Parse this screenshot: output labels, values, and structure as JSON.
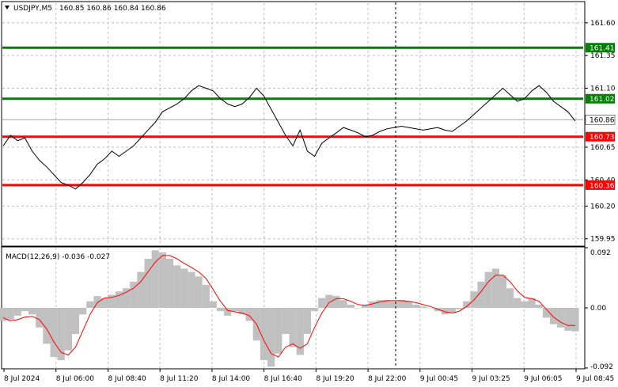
{
  "header": {
    "symbol_label": "USDJPY,M5",
    "ohlc": "160.85 160.86 160.84 160.86"
  },
  "macd_header": {
    "label": "MACD(12,26,9) -0.036 -0.027"
  },
  "colors": {
    "price_line": "#000000",
    "support_level": "#ff0000",
    "resistance_level": "#008000",
    "grid": "#c0c0c0",
    "macd_histogram": "#c0c0c0",
    "signal_line": "#ff0000",
    "current_price_line": "#a0a0a0",
    "cursor_line": "#000000"
  },
  "chart_data": [
    {
      "type": "line",
      "title": "USDJPY,M5",
      "ylim": [
        159.9,
        161.75
      ],
      "y_ticks": [
        "161.60",
        "161.35",
        "161.10",
        "160.86",
        "160.65",
        "160.40",
        "160.20",
        "159.95"
      ],
      "x_ticks": [
        "8 Jul 2024",
        "8 Jul 06:00",
        "8 Jul 08:40",
        "8 Jul 11:20",
        "8 Jul 14:00",
        "8 Jul 16:40",
        "8 Jul 19:20",
        "8 Jul 22:00",
        "9 Jul 00:45",
        "9 Jul 03:25",
        "9 Jul 06:05",
        "9 Jul 08:45"
      ],
      "levels": [
        {
          "value": 161.41,
          "label": "161.41",
          "color": "#008000"
        },
        {
          "value": 161.02,
          "label": "161.02",
          "color": "#008000"
        },
        {
          "value": 160.73,
          "label": "160.73",
          "color": "#ff0000"
        },
        {
          "value": 160.36,
          "label": "160.36",
          "color": "#ff0000"
        }
      ],
      "current_price": {
        "value": 160.86,
        "label": "160.86"
      },
      "series": [
        {
          "values": [
            160.66,
            160.74,
            160.7,
            160.72,
            160.62,
            160.55,
            160.5,
            160.44,
            160.38,
            160.36,
            160.33,
            160.38,
            160.44,
            160.52,
            160.56,
            160.62,
            160.58,
            160.62,
            160.66,
            160.72,
            160.78,
            160.84,
            160.92,
            160.95,
            160.98,
            161.02,
            161.08,
            161.12,
            161.1,
            161.08,
            161.02,
            160.98,
            160.96,
            160.98,
            161.03,
            161.1,
            161.04,
            160.94,
            160.84,
            160.74,
            160.66,
            160.78,
            160.62,
            160.58,
            160.68,
            160.72,
            160.76,
            160.8,
            160.78,
            160.76,
            160.73,
            160.74,
            160.77,
            160.79,
            160.8,
            160.81,
            160.8,
            160.79,
            160.78,
            160.79,
            160.8,
            160.78,
            160.77,
            160.81,
            160.85,
            160.9,
            160.95,
            161.0,
            161.05,
            161.1,
            161.05,
            161.0,
            161.02,
            161.08,
            161.12,
            161.07,
            161.0,
            160.96,
            160.92,
            160.85
          ]
        }
      ]
    },
    {
      "type": "bar",
      "title": "MACD(12,26,9) -0.036 -0.027",
      "ylim": [
        -0.092,
        0.092
      ],
      "y_ticks": [
        "0.092",
        "0.00",
        "-0.092"
      ],
      "series": [
        {
          "name": "MACD",
          "values": [
            -0.02,
            -0.018,
            -0.012,
            -0.005,
            -0.01,
            -0.03,
            -0.055,
            -0.075,
            -0.08,
            -0.065,
            -0.04,
            -0.01,
            0.01,
            0.018,
            0.015,
            0.02,
            0.025,
            0.03,
            0.04,
            0.055,
            0.075,
            0.088,
            0.085,
            0.075,
            0.065,
            0.06,
            0.055,
            0.048,
            0.035,
            0.01,
            -0.005,
            -0.012,
            -0.005,
            -0.01,
            -0.02,
            -0.05,
            -0.08,
            -0.09,
            -0.07,
            -0.04,
            -0.06,
            -0.072,
            -0.04,
            -0.005,
            0.015,
            0.02,
            0.018,
            0.012,
            0.005,
            0.0,
            0.005,
            0.01,
            0.012,
            0.012,
            0.01,
            0.012,
            0.01,
            0.005,
            0.002,
            0.0,
            -0.005,
            -0.01,
            -0.008,
            -0.002,
            0.01,
            0.025,
            0.04,
            0.055,
            0.06,
            0.05,
            0.03,
            0.015,
            0.01,
            0.015,
            0.005,
            -0.015,
            -0.025,
            -0.03,
            -0.035,
            -0.036
          ]
        },
        {
          "name": "Signal",
          "values": [
            -0.015,
            -0.02,
            -0.018,
            -0.014,
            -0.013,
            -0.018,
            -0.032,
            -0.052,
            -0.068,
            -0.072,
            -0.06,
            -0.035,
            -0.01,
            0.008,
            0.015,
            0.016,
            0.019,
            0.024,
            0.03,
            0.04,
            0.055,
            0.07,
            0.08,
            0.08,
            0.075,
            0.068,
            0.062,
            0.055,
            0.045,
            0.028,
            0.01,
            -0.004,
            -0.006,
            -0.008,
            -0.012,
            -0.025,
            -0.05,
            -0.07,
            -0.075,
            -0.06,
            -0.055,
            -0.062,
            -0.055,
            -0.03,
            -0.008,
            0.008,
            0.014,
            0.014,
            0.01,
            0.005,
            0.004,
            0.006,
            0.009,
            0.011,
            0.011,
            0.011,
            0.01,
            0.008,
            0.005,
            0.002,
            -0.002,
            -0.006,
            -0.008,
            -0.005,
            0.002,
            0.012,
            0.025,
            0.04,
            0.05,
            0.05,
            0.04,
            0.026,
            0.016,
            0.014,
            0.01,
            -0.002,
            -0.014,
            -0.022,
            -0.027,
            -0.027
          ]
        }
      ]
    }
  ]
}
